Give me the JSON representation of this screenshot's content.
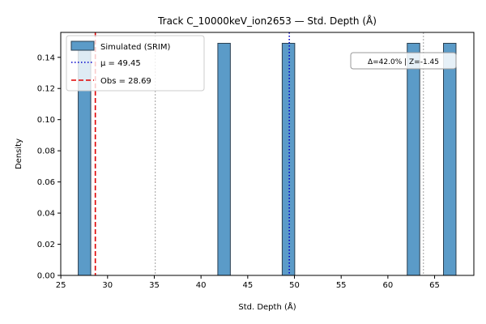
{
  "chart_data": {
    "type": "bar",
    "title": "Track C_10000keV_ion2653 — Std. Depth (Å)",
    "xlabel": "Std. Depth (Å)",
    "ylabel": "Density",
    "xlim": [
      24.99,
      69.2
    ],
    "ylim": [
      0.0,
      0.156
    ],
    "xticks": [
      25,
      30,
      35,
      40,
      45,
      50,
      55,
      60,
      65
    ],
    "yticks": [
      0.0,
      0.02,
      0.04,
      0.06,
      0.08,
      0.1,
      0.12,
      0.14
    ],
    "ytick_labels": [
      "0.00",
      "0.02",
      "0.04",
      "0.06",
      "0.08",
      "0.10",
      "0.12",
      "0.14"
    ],
    "bin_edges": [
      26.86,
      28.2,
      41.8,
      43.14,
      48.69,
      50.03,
      62.07,
      63.41,
      65.95,
      67.29
    ],
    "bars": [
      {
        "x0": 26.86,
        "x1": 28.2,
        "density": 0.149
      },
      {
        "x0": 41.8,
        "x1": 43.14,
        "density": 0.149
      },
      {
        "x0": 48.69,
        "x1": 50.03,
        "density": 0.149
      },
      {
        "x0": 62.07,
        "x1": 63.41,
        "density": 0.149
      },
      {
        "x0": 65.95,
        "x1": 67.29,
        "density": 0.149
      }
    ],
    "bar_color": "#5b9bc8",
    "bar_edge_color": "#2b3f50",
    "mean": {
      "value": 49.45,
      "label": "μ = 49.45",
      "color": "#0000cc"
    },
    "observed": {
      "value": 28.69,
      "label": "Obs = 28.69",
      "color": "#e00000"
    },
    "reference_lines": [
      35.1,
      63.8
    ],
    "reference_line_color": "#b0b0b0",
    "legend": {
      "placement": "top-left",
      "entries": [
        "Simulated (SRIM)",
        "μ = 49.45",
        "Obs = 28.69"
      ]
    },
    "annotation": {
      "text": "Δ=42.0% | Z=-1.45",
      "placement": "top-right"
    },
    "grid": false
  }
}
